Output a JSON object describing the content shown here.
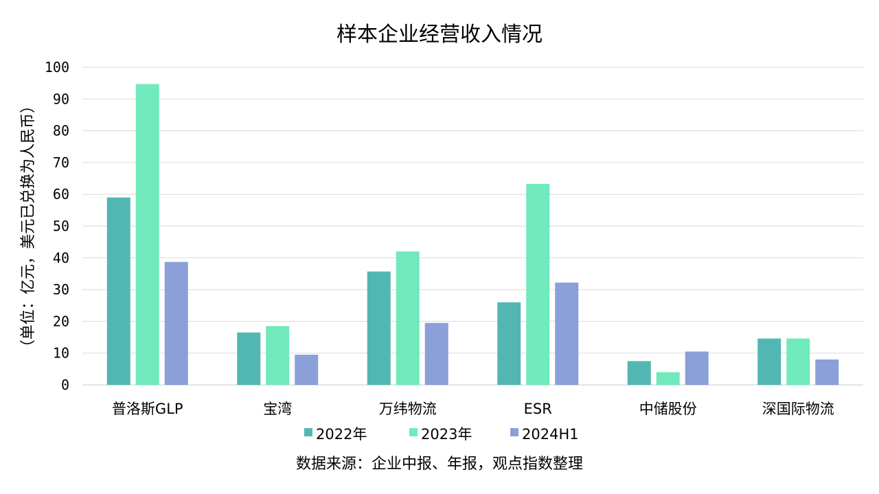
{
  "chart_data": {
    "type": "bar",
    "title": "样本企业经营收入情况",
    "ylabel": "（单位：亿元，美元已兑换为人民币）",
    "xlabel": "",
    "ylim": [
      0,
      100
    ],
    "yticks": [
      0,
      10,
      20,
      30,
      40,
      50,
      60,
      70,
      80,
      90,
      100
    ],
    "grid": true,
    "legend_position": "bottom",
    "categories": [
      "普洛斯GLP",
      "宝湾",
      "万纬物流",
      "ESR",
      "中储股份",
      "深国际物流"
    ],
    "series": [
      {
        "name": "2022年",
        "color": "#52b7b3",
        "values": [
          59,
          16.5,
          35.7,
          26,
          7.5,
          14.6
        ]
      },
      {
        "name": "2023年",
        "color": "#70e9bc",
        "values": [
          94.7,
          18.5,
          42,
          63.3,
          4,
          14.6
        ]
      },
      {
        "name": "2024H1",
        "color": "#8b9fd8",
        "values": [
          38.7,
          9.5,
          19.5,
          32.2,
          10.5,
          8
        ]
      }
    ],
    "source": "数据来源：企业中报、年报，观点指数整理"
  }
}
